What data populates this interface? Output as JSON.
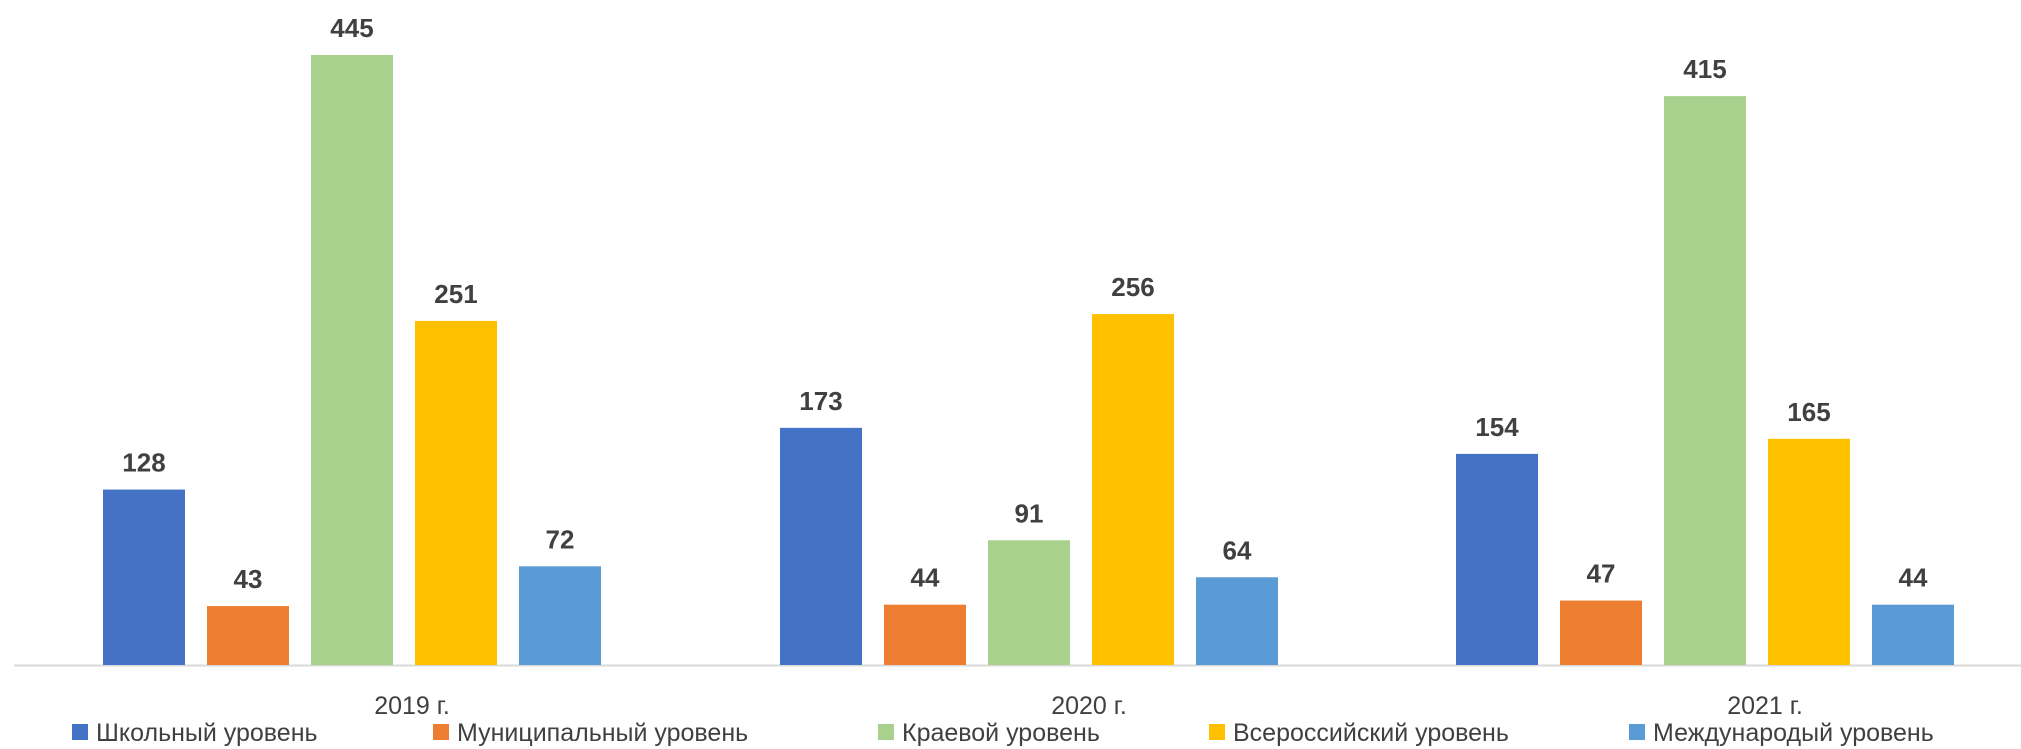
{
  "chart_data": {
    "type": "bar",
    "categories": [
      "2019 г.",
      "2020 г.",
      "2021 г."
    ],
    "series": [
      {
        "name": "Школьный уровень",
        "color": "#4472C4",
        "values": [
          128,
          173,
          154
        ]
      },
      {
        "name": "Муниципальный уровень",
        "color": "#ED7D31",
        "values": [
          43,
          44,
          47
        ]
      },
      {
        "name": "Краевой уровень",
        "color": "#A9D18E",
        "values": [
          445,
          91,
          415
        ]
      },
      {
        "name": "Всероссийский уровень",
        "color": "#FFC000",
        "values": [
          251,
          256,
          165
        ]
      },
      {
        "name": "Международый уровень",
        "color": "#5B9BD5",
        "values": [
          72,
          64,
          44
        ]
      }
    ],
    "ylim": [
      0,
      445
    ],
    "data_labels": true,
    "grid": false,
    "legend_position": "bottom"
  }
}
